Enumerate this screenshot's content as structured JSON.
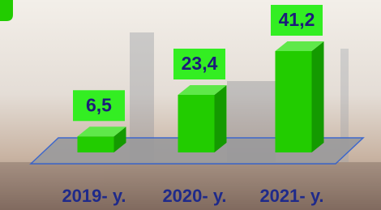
{
  "chart_data": {
    "type": "bar3d",
    "categories": [
      "2019- y.",
      "2020- y.",
      "2021- y."
    ],
    "values": [
      6.5,
      23.4,
      41.2
    ],
    "value_labels": [
      "6,5",
      "23,4",
      "41,2"
    ],
    "color": "#22cc00"
  }
}
